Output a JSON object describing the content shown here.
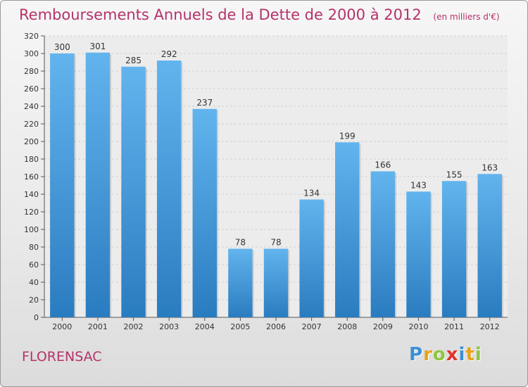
{
  "header": {
    "title": "Remboursements Annuels de la Dette de 2000 à 2012",
    "subtitle": "(en milliers d'€)"
  },
  "footer": {
    "place": "FLORENSAC",
    "logo_letters": [
      {
        "char": "P",
        "color": "#3a8fd6"
      },
      {
        "char": "r",
        "color": "#e8a21a"
      },
      {
        "char": "o",
        "color": "#8dc63f"
      },
      {
        "char": "x",
        "color": "#e2332e"
      },
      {
        "char": "i",
        "color": "#3a8fd6"
      },
      {
        "char": "t",
        "color": "#e8a21a"
      },
      {
        "char": "i",
        "color": "#8dc63f"
      }
    ]
  },
  "chart_data": {
    "type": "bar",
    "title": "Remboursements Annuels de la Dette de 2000 à 2012",
    "xlabel": "",
    "ylabel": "",
    "categories": [
      "2000",
      "2001",
      "2002",
      "2003",
      "2004",
      "2005",
      "2006",
      "2007",
      "2008",
      "2009",
      "2010",
      "2011",
      "2012"
    ],
    "values": [
      300,
      301,
      285,
      292,
      237,
      78,
      78,
      134,
      199,
      166,
      143,
      155,
      163
    ],
    "ylim": [
      0,
      320
    ],
    "yticks": [
      0,
      20,
      40,
      60,
      80,
      100,
      120,
      140,
      160,
      180,
      200,
      220,
      240,
      260,
      280,
      300,
      320
    ],
    "grid": true,
    "bar_color_top": "#62b4ee",
    "bar_color_bottom": "#2a7cc0"
  }
}
